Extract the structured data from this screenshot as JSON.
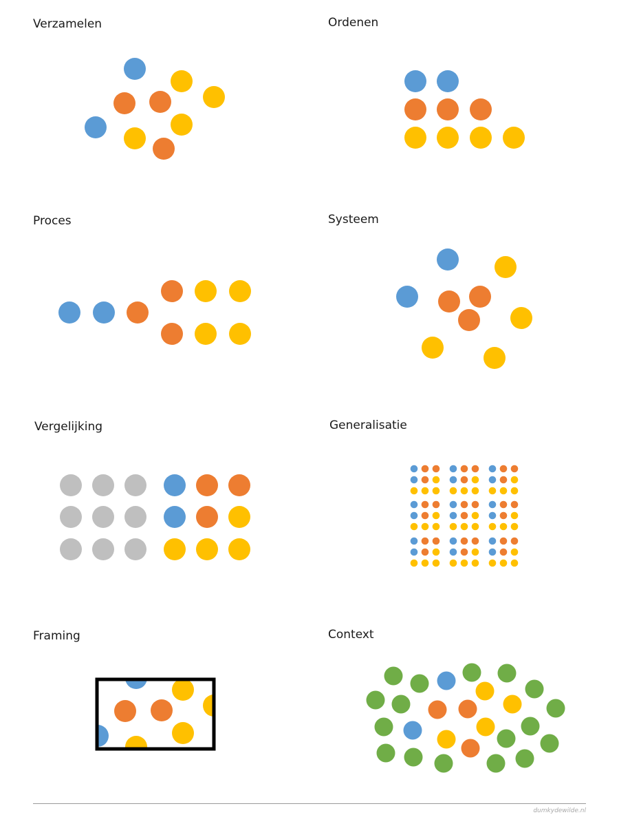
{
  "colors": {
    "blue": "#5b9bd5",
    "orange": "#ed7d31",
    "yellow": "#ffc000",
    "gray": "#bfbfbf",
    "green": "#70ad47",
    "frame": "#000000"
  },
  "panels": {
    "verzamelen": {
      "title": "Verzamelen"
    },
    "ordenen": {
      "title": "Ordenen"
    },
    "proces": {
      "title": "Proces"
    },
    "systeem": {
      "title": "Systeem"
    },
    "vergelijking": {
      "title": "Vergelijking"
    },
    "generalisatie": {
      "title": "Generalisatie"
    },
    "framing": {
      "title": "Framing"
    },
    "context": {
      "title": "Context"
    }
  },
  "footer": {
    "credit": "dumkydewilde.nl"
  }
}
